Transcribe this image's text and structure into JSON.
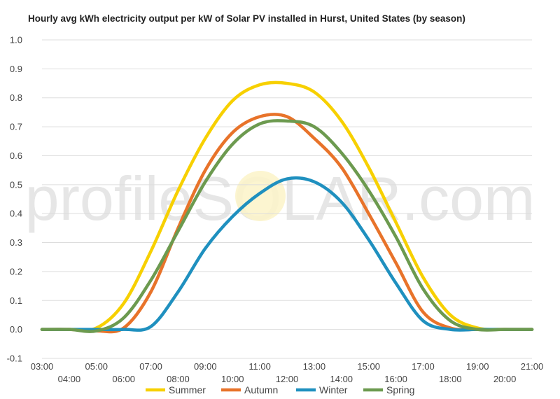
{
  "chart_data": {
    "type": "line",
    "title": "Hourly avg kWh electricity output per kW of Solar PV installed in Hurst, United States (by season)",
    "xlabel": "",
    "ylabel": "",
    "watermark": "profileSOLAR.com",
    "x": [
      "03:00",
      "04:00",
      "05:00",
      "06:00",
      "07:00",
      "08:00",
      "09:00",
      "10:00",
      "11:00",
      "12:00",
      "13:00",
      "14:00",
      "15:00",
      "16:00",
      "17:00",
      "18:00",
      "19:00",
      "20:00",
      "21:00"
    ],
    "ylim": [
      -0.1,
      1.0
    ],
    "yticks": [
      "1.0",
      "0.9",
      "0.8",
      "0.7",
      "0.6",
      "0.5",
      "0.4",
      "0.3",
      "0.2",
      "0.1",
      "0.0",
      "-0.1"
    ],
    "grid": true,
    "legend_position": "bottom",
    "series": [
      {
        "name": "Summer",
        "color": "#f7d000",
        "values": [
          0.0,
          0.0,
          0.005,
          0.09,
          0.27,
          0.48,
          0.66,
          0.79,
          0.845,
          0.85,
          0.82,
          0.72,
          0.56,
          0.37,
          0.18,
          0.05,
          0.005,
          0.0,
          0.0
        ]
      },
      {
        "name": "Autumn",
        "color": "#e8732a",
        "values": [
          0.0,
          0.0,
          -0.005,
          0.005,
          0.13,
          0.35,
          0.55,
          0.68,
          0.735,
          0.735,
          0.66,
          0.56,
          0.4,
          0.23,
          0.06,
          0.005,
          0.0,
          0.0,
          0.0
        ]
      },
      {
        "name": "Winter",
        "color": "#1f90bf",
        "values": [
          0.0,
          0.0,
          0.0,
          0.0,
          0.01,
          0.13,
          0.28,
          0.39,
          0.47,
          0.52,
          0.51,
          0.44,
          0.31,
          0.16,
          0.03,
          0.0,
          0.0,
          0.0,
          0.0
        ]
      },
      {
        "name": "Spring",
        "color": "#6c9a4f",
        "values": [
          0.0,
          0.0,
          -0.005,
          0.04,
          0.17,
          0.34,
          0.51,
          0.64,
          0.71,
          0.72,
          0.7,
          0.61,
          0.48,
          0.32,
          0.14,
          0.03,
          0.0,
          0.0,
          0.0
        ]
      }
    ]
  }
}
